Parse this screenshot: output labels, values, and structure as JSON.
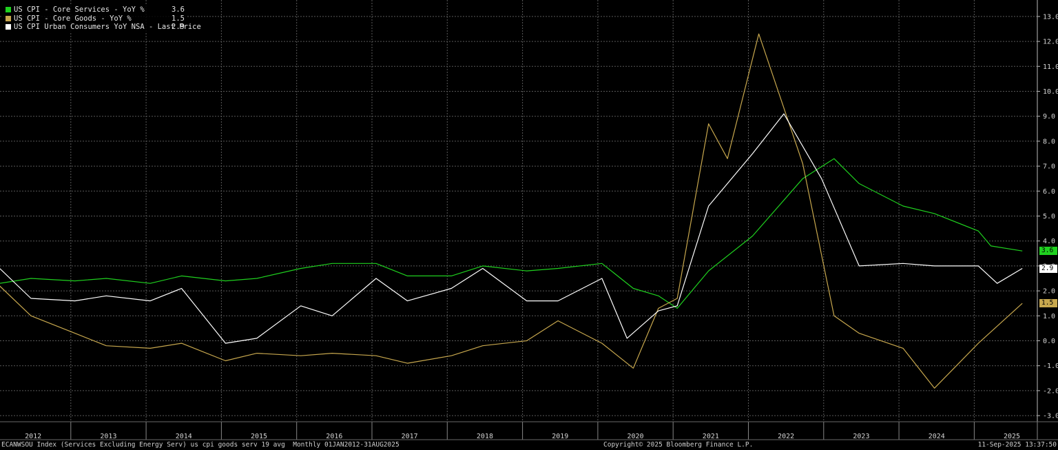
{
  "legend": [
    {
      "name": "US CPI - Core Services - YoY %",
      "value": "3.6",
      "color": "#1fd11f"
    },
    {
      "name": "US CPI - Core Goods - YoY %",
      "value": "1.5",
      "color": "#c8a84e"
    },
    {
      "name": "US CPI Urban Consumers YoY NSA - Last Price",
      "value": "2.9",
      "color": "#ffffff"
    }
  ],
  "footer": {
    "left": "ECANWSOU Index (Services Excluding Energy Serv) us cpi goods serv 19 avg  Monthly 01JAN2012-31AUG2025",
    "center": "Copyright© 2025 Bloomberg Finance L.P.",
    "right": "11-Sep-2025 13:37:50"
  },
  "chart_data": {
    "type": "line",
    "title": "",
    "xlabel": "",
    "ylabel": "",
    "x_tick_labels": [
      "2012",
      "2013",
      "2014",
      "2015",
      "2016",
      "2017",
      "2018",
      "2019",
      "2020",
      "2021",
      "2022",
      "2023",
      "2024",
      "2025"
    ],
    "y_tick_labels": [
      "13.0",
      "12.0",
      "11.0",
      "10.0",
      "9.0",
      "8.0",
      "7.0",
      "6.0",
      "5.0",
      "4.0",
      "3.0",
      "2.0",
      "1.0",
      "0.0",
      "-1.0",
      "-2.0",
      "-3.0"
    ],
    "ylim": [
      -3.3,
      13.5
    ],
    "xlim": [
      "2012-01",
      "2025-08"
    ],
    "grid": true,
    "legend_position": "top-left",
    "series": [
      {
        "name": "US CPI - Core Services - YoY %",
        "color": "#1fd11f",
        "last_value_label": "3.6",
        "sampled": [
          [
            "2012-01",
            2.3
          ],
          [
            "2012-06",
            2.5
          ],
          [
            "2013-01",
            2.4
          ],
          [
            "2013-06",
            2.5
          ],
          [
            "2014-01",
            2.3
          ],
          [
            "2014-06",
            2.6
          ],
          [
            "2015-01",
            2.4
          ],
          [
            "2015-06",
            2.5
          ],
          [
            "2016-01",
            2.9
          ],
          [
            "2016-06",
            3.1
          ],
          [
            "2017-01",
            3.1
          ],
          [
            "2017-06",
            2.6
          ],
          [
            "2018-01",
            2.6
          ],
          [
            "2018-06",
            3.0
          ],
          [
            "2019-01",
            2.8
          ],
          [
            "2019-06",
            2.9
          ],
          [
            "2020-01",
            3.1
          ],
          [
            "2020-06",
            2.1
          ],
          [
            "2020-10",
            1.8
          ],
          [
            "2021-01",
            1.3
          ],
          [
            "2021-06",
            2.8
          ],
          [
            "2022-01",
            4.2
          ],
          [
            "2022-09",
            6.5
          ],
          [
            "2023-02",
            7.3
          ],
          [
            "2023-06",
            6.3
          ],
          [
            "2024-01",
            5.4
          ],
          [
            "2024-06",
            5.1
          ],
          [
            "2025-01",
            4.4
          ],
          [
            "2025-03",
            3.8
          ],
          [
            "2025-08",
            3.6
          ]
        ]
      },
      {
        "name": "US CPI - Core Goods - YoY %",
        "color": "#c8a84e",
        "last_value_label": "1.5",
        "sampled": [
          [
            "2012-01",
            2.2
          ],
          [
            "2012-06",
            1.0
          ],
          [
            "2013-01",
            0.3
          ],
          [
            "2013-06",
            -0.2
          ],
          [
            "2014-01",
            -0.3
          ],
          [
            "2014-06",
            -0.1
          ],
          [
            "2015-01",
            -0.8
          ],
          [
            "2015-06",
            -0.5
          ],
          [
            "2016-01",
            -0.6
          ],
          [
            "2016-06",
            -0.5
          ],
          [
            "2017-01",
            -0.6
          ],
          [
            "2017-06",
            -0.9
          ],
          [
            "2018-01",
            -0.6
          ],
          [
            "2018-06",
            -0.2
          ],
          [
            "2019-01",
            0.0
          ],
          [
            "2019-06",
            0.8
          ],
          [
            "2020-01",
            -0.1
          ],
          [
            "2020-06",
            -1.1
          ],
          [
            "2020-10",
            1.3
          ],
          [
            "2021-01",
            1.7
          ],
          [
            "2021-06",
            8.7
          ],
          [
            "2021-09",
            7.3
          ],
          [
            "2022-02",
            12.3
          ],
          [
            "2022-09",
            7.1
          ],
          [
            "2023-02",
            1.0
          ],
          [
            "2023-06",
            0.3
          ],
          [
            "2024-01",
            -0.3
          ],
          [
            "2024-06",
            -1.9
          ],
          [
            "2025-01",
            -0.1
          ],
          [
            "2025-08",
            1.5
          ]
        ]
      },
      {
        "name": "US CPI Urban Consumers YoY NSA - Last Price",
        "color": "#ffffff",
        "last_value_label": "2.9",
        "sampled": [
          [
            "2012-01",
            2.9
          ],
          [
            "2012-06",
            1.7
          ],
          [
            "2013-01",
            1.6
          ],
          [
            "2013-06",
            1.8
          ],
          [
            "2014-01",
            1.6
          ],
          [
            "2014-06",
            2.1
          ],
          [
            "2015-01",
            -0.1
          ],
          [
            "2015-06",
            0.1
          ],
          [
            "2016-01",
            1.4
          ],
          [
            "2016-06",
            1.0
          ],
          [
            "2017-01",
            2.5
          ],
          [
            "2017-06",
            1.6
          ],
          [
            "2018-01",
            2.1
          ],
          [
            "2018-06",
            2.9
          ],
          [
            "2019-01",
            1.6
          ],
          [
            "2019-06",
            1.6
          ],
          [
            "2020-01",
            2.5
          ],
          [
            "2020-05",
            0.1
          ],
          [
            "2020-10",
            1.2
          ],
          [
            "2021-01",
            1.4
          ],
          [
            "2021-06",
            5.4
          ],
          [
            "2022-01",
            7.5
          ],
          [
            "2022-06",
            9.1
          ],
          [
            "2022-12",
            6.5
          ],
          [
            "2023-06",
            3.0
          ],
          [
            "2024-01",
            3.1
          ],
          [
            "2024-06",
            3.0
          ],
          [
            "2025-01",
            3.0
          ],
          [
            "2025-04",
            2.3
          ],
          [
            "2025-08",
            2.9
          ]
        ]
      }
    ]
  }
}
